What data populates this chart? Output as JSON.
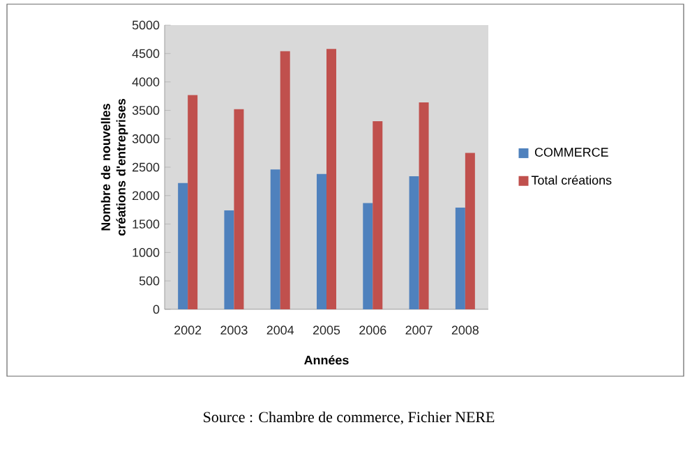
{
  "chart_data": {
    "type": "bar",
    "categories": [
      "2002",
      "2003",
      "2004",
      "2005",
      "2006",
      "2007",
      "2008"
    ],
    "series": [
      {
        "name": "COMMERCE",
        "color": "#4f81bd",
        "values": [
          2220,
          1740,
          2460,
          2380,
          1870,
          2340,
          1790
        ]
      },
      {
        "name": "Total créations",
        "color": "#c0504d",
        "values": [
          3770,
          3520,
          4540,
          4580,
          3310,
          3640,
          2750
        ]
      }
    ],
    "xlabel": "Années",
    "ylabel": "Nombre de nouvelles créations d'entreprises",
    "ylim": [
      0,
      5000
    ],
    "yticks": [
      0,
      500,
      1000,
      1500,
      2000,
      2500,
      3000,
      3500,
      4000,
      4500,
      5000
    ],
    "legend": "right",
    "annotations": [
      "Source : Chambre de commerce, Fichier NERE"
    ]
  }
}
